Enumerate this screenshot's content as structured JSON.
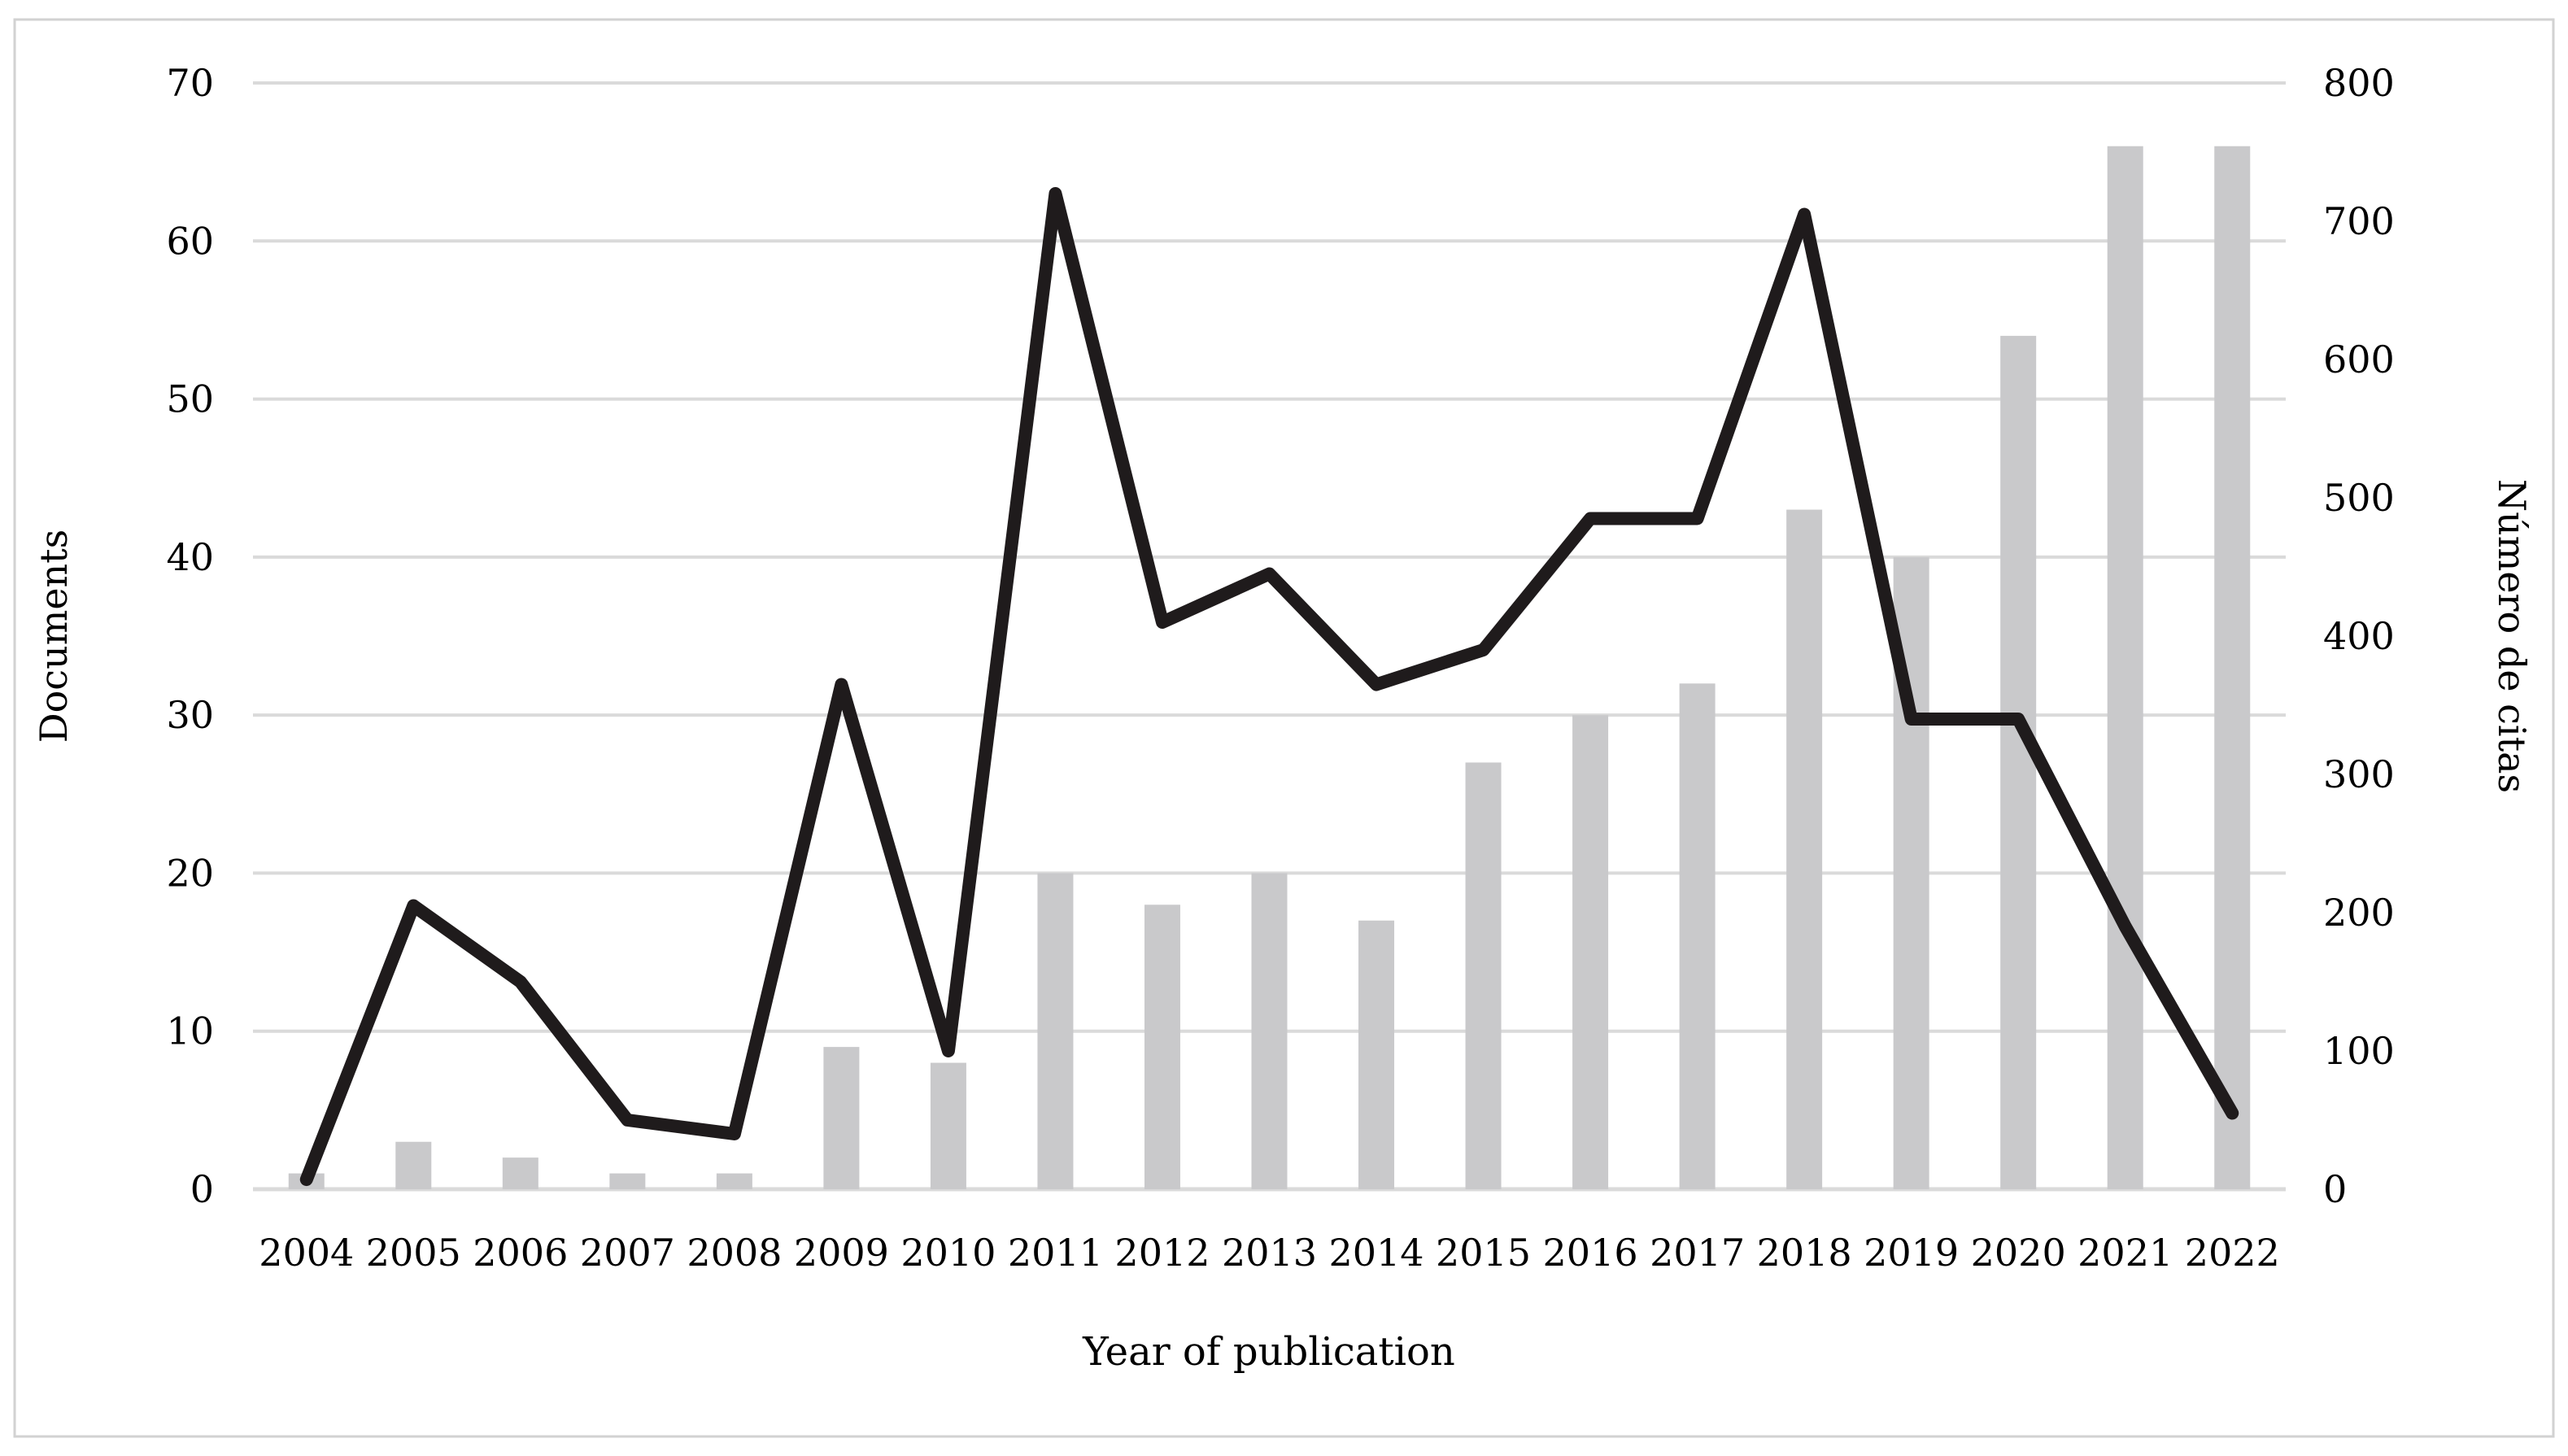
{
  "figure": {
    "xlabel": "Year of publication",
    "left_axis_title": "Documents",
    "right_axis_title": "Número de citas"
  },
  "chart_data": {
    "type": "bar+line combo",
    "categories": [
      "2004",
      "2005",
      "2006",
      "2007",
      "2008",
      "2009",
      "2010",
      "2011",
      "2012",
      "2013",
      "2014",
      "2015",
      "2016",
      "2017",
      "2018",
      "2019",
      "2020",
      "2021",
      "2022"
    ],
    "series": [
      {
        "name": "Documents",
        "type": "bar",
        "axis": "left",
        "values": [
          1,
          3,
          2,
          1,
          1,
          9,
          8,
          20,
          18,
          20,
          17,
          27,
          30,
          32,
          43,
          40,
          54,
          66,
          66
        ]
      },
      {
        "name": "Número de citas",
        "type": "line",
        "axis": "right",
        "values": [
          7,
          205,
          150,
          50,
          40,
          365,
          100,
          720,
          410,
          445,
          365,
          390,
          485,
          485,
          705,
          340,
          340,
          190,
          55
        ]
      }
    ],
    "left_axis": {
      "label": "Documents",
      "range": [
        0,
        70
      ],
      "ticks": [
        0,
        10,
        20,
        30,
        40,
        50,
        60,
        70
      ]
    },
    "right_axis": {
      "label": "Número de citas",
      "range": [
        0,
        800
      ],
      "ticks": [
        0,
        100,
        200,
        300,
        400,
        500,
        600,
        700,
        800
      ]
    },
    "xlabel": "Year of publication",
    "title": "",
    "grid": true,
    "legend": false,
    "layout_hints": {
      "gridlines": "horizontal only, light gray",
      "bar_color": "#c9c9cb",
      "line_color": "#1f1b1c",
      "grid_color": "#dadada",
      "border_color": "#d2d2d2",
      "text_color": "#000000",
      "background": "#ffffff"
    }
  }
}
